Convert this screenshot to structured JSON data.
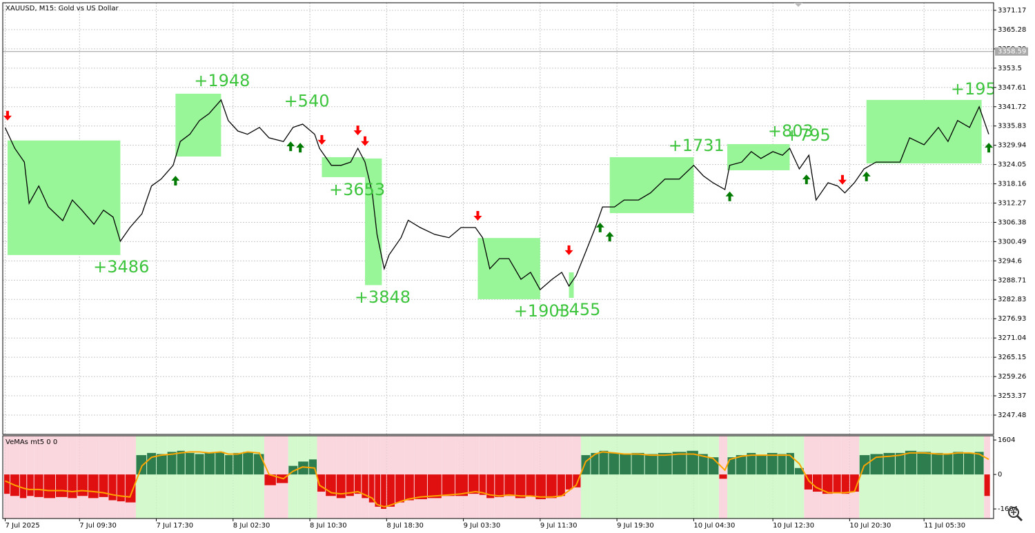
{
  "chart_data": [
    {
      "type": "line",
      "title": "XAUUSD, M15:  Gold vs US Dollar",
      "color": "#000000",
      "x": [
        1,
        5,
        9,
        11,
        15,
        19,
        25,
        29,
        33,
        38,
        42,
        46,
        49,
        53,
        58,
        62,
        66,
        71,
        74,
        78,
        82,
        86,
        91,
        94,
        98,
        102,
        107,
        111,
        117,
        121,
        125,
        130,
        132,
        137,
        141,
        145,
        148,
        151,
        154,
        156,
        159,
        161,
        166,
        169,
        174,
        180,
        186,
        191,
        197,
        200,
        203,
        207,
        211,
        216,
        220,
        224,
        229,
        233,
        236,
        239,
        243,
        247,
        250,
        255,
        259,
        265,
        270,
        276,
        282,
        288,
        292,
        296,
        301,
        303,
        308,
        312,
        316,
        321,
        325,
        328,
        332,
        336,
        339,
        344,
        348,
        351,
        355,
        359,
        364,
        370,
        374,
        378,
        384,
        390,
        394,
        398,
        403,
        407,
        411
      ],
      "values": [
        3335.3,
        3329.0,
        3324.8,
        3312.2,
        3317.5,
        3311.1,
        3306.9,
        3313.2,
        3310.1,
        3305.8,
        3310.1,
        3308.0,
        3300.6,
        3304.8,
        3309.0,
        3317.5,
        3319.6,
        3323.8,
        3331.1,
        3333.3,
        3337.5,
        3339.6,
        3343.8,
        3337.5,
        3334.3,
        3333.3,
        3335.4,
        3332.2,
        3331.1,
        3335.4,
        3336.4,
        3333.3,
        3329.0,
        3323.8,
        3323.8,
        3324.8,
        3329.0,
        3324.8,
        3315.4,
        3302.7,
        3292.2,
        3296.4,
        3301.7,
        3307.0,
        3304.8,
        3302.7,
        3301.7,
        3304.8,
        3304.8,
        3301.7,
        3292.2,
        3295.3,
        3295.3,
        3289.0,
        3291.1,
        3285.8,
        3289.0,
        3291.1,
        3286.9,
        3290.1,
        3297.4,
        3304.8,
        3311.1,
        3311.1,
        3313.2,
        3313.2,
        3315.4,
        3319.6,
        3319.6,
        3323.8,
        3320.6,
        3318.5,
        3316.4,
        3323.8,
        3324.8,
        3328.0,
        3325.9,
        3328.0,
        3326.9,
        3329.0,
        3322.7,
        3326.9,
        3313.2,
        3318.5,
        3317.5,
        3315.4,
        3318.5,
        3322.7,
        3324.8,
        3324.8,
        3324.8,
        3332.2,
        3330.1,
        3335.4,
        3331.1,
        3337.5,
        3335.4,
        3341.7,
        3333.3
      ],
      "xlim": [
        0,
        413
      ],
      "ylim": [
        3241.58,
        3373.49
      ],
      "yticks": [
        3371.17,
        3365.28,
        3359.39,
        3353.5,
        3347.61,
        3341.72,
        3335.83,
        3329.94,
        3324.05,
        3318.16,
        3312.27,
        3306.38,
        3300.49,
        3294.6,
        3288.71,
        3282.83,
        3276.93,
        3271.04,
        3265.15,
        3259.26,
        3253.37,
        3247.48
      ],
      "xticks": [
        {
          "value": 1,
          "label": "7 Jul 2025"
        },
        {
          "value": 32,
          "label": "7 Jul 09:30"
        },
        {
          "value": 64,
          "label": "7 Jul 17:30"
        },
        {
          "value": 96,
          "label": "8 Jul 02:30"
        },
        {
          "value": 128,
          "label": "8 Jul 10:30"
        },
        {
          "value": 160,
          "label": "8 Jul 18:30"
        },
        {
          "value": 192,
          "label": "9 Jul 03:30"
        },
        {
          "value": 224,
          "label": "9 Jul 11:30"
        },
        {
          "value": 256,
          "label": "9 Jul 19:30"
        },
        {
          "value": 288,
          "label": "10 Jul 04:30"
        },
        {
          "value": 321,
          "label": "10 Jul 12:30"
        },
        {
          "value": 353,
          "label": "10 Jul 20:30"
        },
        {
          "value": 384,
          "label": "11 Jul 05:30"
        }
      ],
      "grid": true,
      "current_price": 3358.59,
      "zone_color": "#98f598",
      "zones": [
        {
          "x": [
            2,
            49
          ],
          "y": [
            3296.4,
            3331.4
          ]
        },
        {
          "x": [
            72,
            91
          ],
          "y": [
            3326.5,
            3345.7
          ]
        },
        {
          "x": [
            133,
            151
          ],
          "y": [
            3320.2,
            3326.3
          ]
        },
        {
          "x": [
            151,
            158
          ],
          "y": [
            3287.2,
            3325.9
          ]
        },
        {
          "x": [
            198,
            224
          ],
          "y": [
            3282.9,
            3301.6
          ]
        },
        {
          "x": [
            236,
            238
          ],
          "y": [
            3283.3,
            3291.1
          ]
        },
        {
          "x": [
            253,
            288
          ],
          "y": [
            3309.2,
            3326.3
          ]
        },
        {
          "x": [
            302,
            328
          ],
          "y": [
            3322.3,
            3330.3
          ]
        },
        {
          "x": [
            360,
            408
          ],
          "y": [
            3324.4,
            3343.8
          ]
        }
      ],
      "annotation_color": "#3cc43c",
      "annotations": [
        {
          "text": "+3486",
          "x": 49.4,
          "y": 3292.6
        },
        {
          "text": "+1948",
          "x": 91.4,
          "y": 3349.5
        },
        {
          "text": "+540",
          "x": 126.7,
          "y": 3343.2
        },
        {
          "text": "+3653",
          "x": 147.7,
          "y": 3316.2
        },
        {
          "text": "+3848",
          "x": 158.3,
          "y": 3283.3
        },
        {
          "text": "+1903",
          "x": 224.7,
          "y": 3279.1
        },
        {
          "text": "+455",
          "x": 239.7,
          "y": 3279.5
        },
        {
          "text": "+1731",
          "x": 289.1,
          "y": 3329.7
        },
        {
          "text": "+803",
          "x": 328.4,
          "y": 3334.1
        },
        {
          "text": "+795",
          "x": 335.6,
          "y": 3332.8
        },
        {
          "text": "+195",
          "x": 404.6,
          "y": 3346.9
        }
      ],
      "sell_color": "#ff0000",
      "sell_signals": {
        "x": [
          2,
          133,
          148,
          151,
          198,
          236,
          350
        ],
        "y": [
          3337.5,
          3330.1,
          3333.0,
          3329.7,
          3306.9,
          3296.4,
          3317.9
        ]
      },
      "buy_color": "#007a00",
      "buy_signals": {
        "x": [
          72,
          120,
          124,
          249,
          253,
          303,
          335,
          360,
          411
        ],
        "y": [
          3320.6,
          3331.1,
          3330.7,
          3306.3,
          3303.5,
          3315.8,
          3321.0,
          3321.9,
          3330.7
        ]
      }
    },
    {
      "type": "bar",
      "title": "VeMAs mt5 0 0",
      "x": [
        1,
        5,
        9,
        11,
        15,
        19,
        25,
        29,
        33,
        38,
        42,
        46,
        49,
        53,
        58,
        62,
        66,
        71,
        74,
        78,
        82,
        86,
        91,
        94,
        98,
        102,
        107,
        111,
        117,
        121,
        125,
        130,
        132,
        137,
        141,
        145,
        148,
        151,
        154,
        156,
        159,
        161,
        166,
        169,
        174,
        180,
        186,
        191,
        197,
        200,
        203,
        207,
        211,
        216,
        220,
        224,
        229,
        233,
        236,
        239,
        243,
        247,
        250,
        255,
        259,
        265,
        270,
        276,
        282,
        288,
        292,
        296,
        301,
        303,
        308,
        312,
        316,
        321,
        325,
        328,
        332,
        336,
        339,
        344,
        348,
        351,
        355,
        359,
        364,
        370,
        374,
        378,
        384,
        390,
        394,
        398,
        403,
        407,
        411
      ],
      "values": [
        -900,
        -1000,
        -1100,
        -1000,
        -1050,
        -1100,
        -1050,
        -1100,
        -1000,
        -1100,
        -1050,
        -1200,
        -1250,
        -1300,
        900,
        1000,
        950,
        1050,
        1100,
        1000,
        950,
        1000,
        1050,
        900,
        1000,
        1050,
        950,
        -500,
        -400,
        400,
        600,
        700,
        -800,
        -1000,
        -1100,
        -1000,
        -900,
        -1100,
        -1300,
        -1500,
        -1600,
        -1500,
        -1300,
        -1200,
        -1150,
        -1100,
        -1000,
        -1000,
        -900,
        -950,
        -1100,
        -1050,
        -1000,
        -1100,
        -1000,
        -1150,
        -1100,
        -1000,
        -700,
        -600,
        900,
        1000,
        1100,
        1000,
        950,
        1000,
        950,
        1000,
        1050,
        1100,
        950,
        800,
        -200,
        800,
        900,
        1000,
        900,
        1000,
        950,
        1000,
        300,
        -700,
        -800,
        -900,
        -850,
        -900,
        -800,
        900,
        950,
        1000,
        1000,
        1100,
        1050,
        1000,
        950,
        1050,
        1000,
        1050,
        -1000
      ],
      "up_color": "#2e7d4f",
      "down_color": "#e01010",
      "line_color": "#ffa500",
      "line_values": [
        -300,
        -500,
        -650,
        -700,
        -700,
        -750,
        -750,
        -800,
        -750,
        -800,
        -850,
        -950,
        -1000,
        -1050,
        400,
        800,
        900,
        950,
        1000,
        1050,
        1050,
        1000,
        1050,
        950,
        950,
        1050,
        1000,
        0,
        -200,
        150,
        350,
        300,
        -500,
        -850,
        -900,
        -850,
        -800,
        -950,
        -1100,
        -1400,
        -1500,
        -1450,
        -1250,
        -1150,
        -1050,
        -1000,
        -950,
        -900,
        -800,
        -850,
        -950,
        -1000,
        -950,
        -1000,
        -1000,
        -1050,
        -1050,
        -1000,
        -750,
        -500,
        600,
        950,
        1050,
        1000,
        950,
        950,
        900,
        900,
        950,
        950,
        850,
        750,
        200,
        700,
        850,
        900,
        900,
        900,
        900,
        900,
        500,
        -300,
        -600,
        -850,
        -850,
        -850,
        -800,
        400,
        800,
        850,
        900,
        1000,
        1000,
        950,
        950,
        1000,
        1000,
        950,
        700
      ],
      "xlim": [
        0,
        413
      ],
      "ylim": [
        -2050,
        1800
      ],
      "yticks": [
        1604,
        0,
        -1604
      ]
    }
  ]
}
